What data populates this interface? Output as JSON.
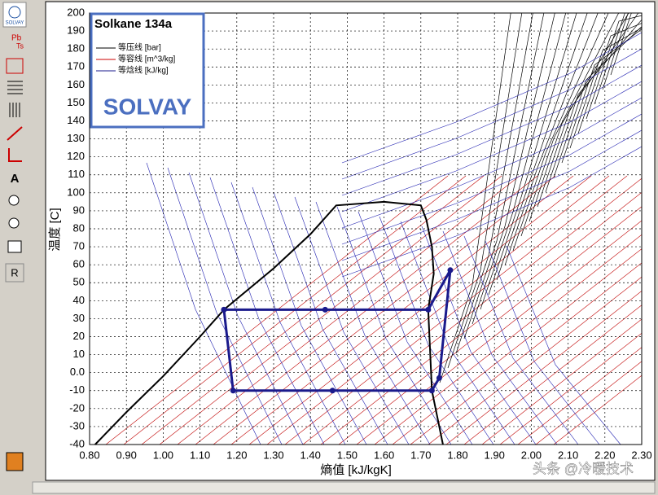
{
  "toolbar": {
    "logo": "SOLVAY",
    "pb": "Pb",
    "ts": "Ts",
    "text_tool": "A",
    "reset": "R"
  },
  "chart_data": {
    "type": "line",
    "title": "Solkane 134a",
    "legend_lines": [
      "等压线 [bar]",
      "等容线 [m^3/kg]",
      "等焓线 [kJ/kg]"
    ],
    "brand": "SOLVAY",
    "x_label": "熵值 [kJ/kgK]",
    "y_label": "温度 [C]",
    "xlim": [
      0.8,
      2.3
    ],
    "xticks": [
      {
        "value": 0.8,
        "label": "0.80"
      },
      {
        "value": 0.9,
        "label": "0.90"
      },
      {
        "value": 1.0,
        "label": "1.00"
      },
      {
        "value": 1.1,
        "label": "1.10"
      },
      {
        "value": 1.2,
        "label": "1.20"
      },
      {
        "value": 1.3,
        "label": "1.30"
      },
      {
        "value": 1.4,
        "label": "1.40"
      },
      {
        "value": 1.5,
        "label": "1.50"
      },
      {
        "value": 1.6,
        "label": "1.60"
      },
      {
        "value": 1.7,
        "label": "1.70"
      },
      {
        "value": 1.8,
        "label": "1.80"
      },
      {
        "value": 1.9,
        "label": "1.90"
      },
      {
        "value": 2.0,
        "label": "2.00"
      },
      {
        "value": 2.1,
        "label": "2.10"
      },
      {
        "value": 2.2,
        "label": "2.20"
      },
      {
        "value": 2.3,
        "label": "2.30"
      }
    ],
    "ylim": [
      -40,
      200
    ],
    "yticks": [
      -40,
      -30,
      -20,
      -10,
      {
        "value": 0,
        "label": "0.0"
      },
      10,
      20,
      30,
      40,
      50,
      60,
      70,
      80,
      90,
      100,
      110,
      120,
      130,
      140,
      150,
      160,
      170,
      180,
      190,
      200
    ],
    "grid": true,
    "series": [
      {
        "color": "#000000",
        "x": [
          0.815,
          0.9,
          1.0,
          1.1,
          1.165,
          1.3,
          1.4,
          1.47,
          1.6,
          1.7,
          1.715,
          1.73,
          1.735,
          1.72,
          1.73,
          1.76
        ],
        "values": [
          -40,
          -22,
          -2,
          20,
          35,
          58,
          77,
          93,
          95,
          93,
          85,
          70,
          55,
          35,
          -10,
          -40
        ]
      },
      {
        "color": "#1a1a8c",
        "x": [
          1.165,
          1.19,
          1.46,
          1.73,
          1.75,
          1.78,
          1.72,
          1.44,
          1.165
        ],
        "values": [
          35,
          -10,
          -10,
          -10,
          -3,
          57,
          35,
          35,
          35
        ]
      }
    ]
  },
  "watermark": "头条 @冷暖技术"
}
